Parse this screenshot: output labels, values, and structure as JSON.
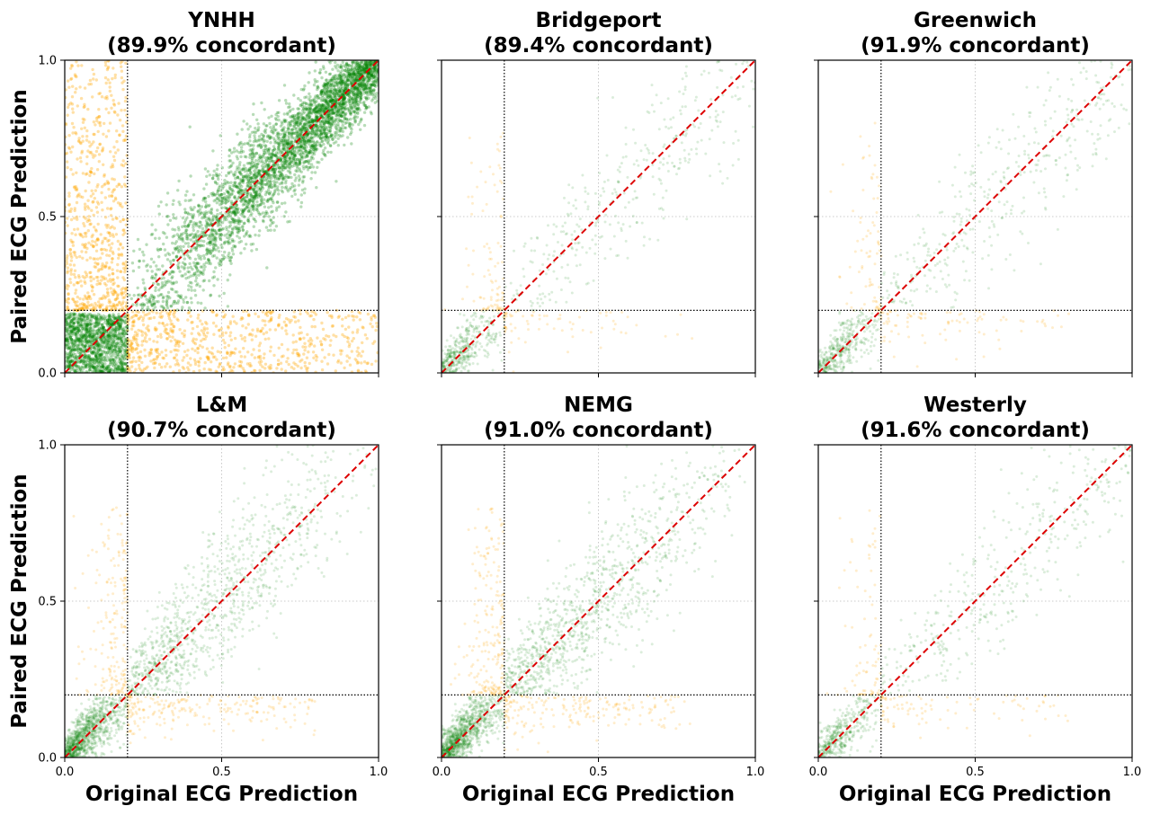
{
  "figure": {
    "xlabel": "Original ECG Prediction",
    "ylabel": "Paired ECG Prediction"
  },
  "colors": {
    "concordant": "#008000",
    "discordant": "#FFA500",
    "identity_line": "#DD0000",
    "threshold_line": "#000000",
    "grid": "#BBBBBB"
  },
  "chart_data": [
    {
      "type": "scatter",
      "title_line1": "YNHH",
      "title_line2": "(89.9% concordant)",
      "concordance_pct": 89.9,
      "density": "very high",
      "threshold": 0.2,
      "xlim": [
        0,
        1
      ],
      "ylim": [
        0,
        1
      ],
      "xticks": [
        "0.0",
        "0.5",
        "1.0"
      ],
      "yticks": [
        "0.0",
        "0.5",
        "1.0"
      ],
      "show_x_ticklabels": false,
      "show_y_ticklabels": true,
      "show_xlabel": false,
      "show_ylabel": true,
      "series": [
        {
          "name": "",
          "color": "concordant",
          "description_points": "dense cloud along diagonal"
        },
        {
          "name": "",
          "color": "discordant",
          "description_points": "points across the 0.2 threshold"
        }
      ],
      "reference_lines": {
        "identity": true,
        "threshold_x": 0.2,
        "threshold_y": 0.2
      }
    },
    {
      "type": "scatter",
      "title_line1": "Bridgeport",
      "title_line2": "(89.4% concordant)",
      "concordance_pct": 89.4,
      "density": "low",
      "threshold": 0.2,
      "xlim": [
        0,
        1
      ],
      "ylim": [
        0,
        1
      ],
      "xticks": [
        "0.0",
        "0.5",
        "1.0"
      ],
      "yticks": [
        "0.0",
        "0.5",
        "1.0"
      ],
      "show_x_ticklabels": false,
      "show_y_ticklabels": false,
      "show_xlabel": false,
      "show_ylabel": false,
      "reference_lines": {
        "identity": true,
        "threshold_x": 0.2,
        "threshold_y": 0.2
      }
    },
    {
      "type": "scatter",
      "title_line1": "Greenwich",
      "title_line2": "(91.9% concordant)",
      "concordance_pct": 91.9,
      "density": "low",
      "threshold": 0.2,
      "xlim": [
        0,
        1
      ],
      "ylim": [
        0,
        1
      ],
      "xticks": [
        "0.0",
        "0.5",
        "1.0"
      ],
      "yticks": [
        "0.0",
        "0.5",
        "1.0"
      ],
      "show_x_ticklabels": false,
      "show_y_ticklabels": false,
      "show_xlabel": false,
      "show_ylabel": false,
      "reference_lines": {
        "identity": true,
        "threshold_x": 0.2,
        "threshold_y": 0.2
      }
    },
    {
      "type": "scatter",
      "title_line1": "L&M",
      "title_line2": "(90.7% concordant)",
      "concordance_pct": 90.7,
      "density": "medium",
      "threshold": 0.2,
      "xlim": [
        0,
        1
      ],
      "ylim": [
        0,
        1
      ],
      "xticks": [
        "0.0",
        "0.5",
        "1.0"
      ],
      "yticks": [
        "0.0",
        "0.5",
        "1.0"
      ],
      "show_x_ticklabels": true,
      "show_y_ticklabels": true,
      "show_xlabel": true,
      "show_ylabel": true,
      "reference_lines": {
        "identity": true,
        "threshold_x": 0.2,
        "threshold_y": 0.2
      }
    },
    {
      "type": "scatter",
      "title_line1": "NEMG",
      "title_line2": "(91.0% concordant)",
      "concordance_pct": 91.0,
      "density": "medium",
      "threshold": 0.2,
      "xlim": [
        0,
        1
      ],
      "ylim": [
        0,
        1
      ],
      "xticks": [
        "0.0",
        "0.5",
        "1.0"
      ],
      "yticks": [
        "0.0",
        "0.5",
        "1.0"
      ],
      "show_x_ticklabels": true,
      "show_y_ticklabels": false,
      "show_xlabel": true,
      "show_ylabel": false,
      "reference_lines": {
        "identity": true,
        "threshold_x": 0.2,
        "threshold_y": 0.2
      }
    },
    {
      "type": "scatter",
      "title_line1": "Westerly",
      "title_line2": "(91.6% concordant)",
      "concordance_pct": 91.6,
      "density": "low",
      "threshold": 0.2,
      "xlim": [
        0,
        1
      ],
      "ylim": [
        0,
        1
      ],
      "xticks": [
        "0.0",
        "0.5",
        "1.0"
      ],
      "yticks": [
        "0.0",
        "0.5",
        "1.0"
      ],
      "show_x_ticklabels": true,
      "show_y_ticklabels": false,
      "show_xlabel": true,
      "show_ylabel": false,
      "reference_lines": {
        "identity": true,
        "threshold_x": 0.2,
        "threshold_y": 0.2
      }
    }
  ]
}
